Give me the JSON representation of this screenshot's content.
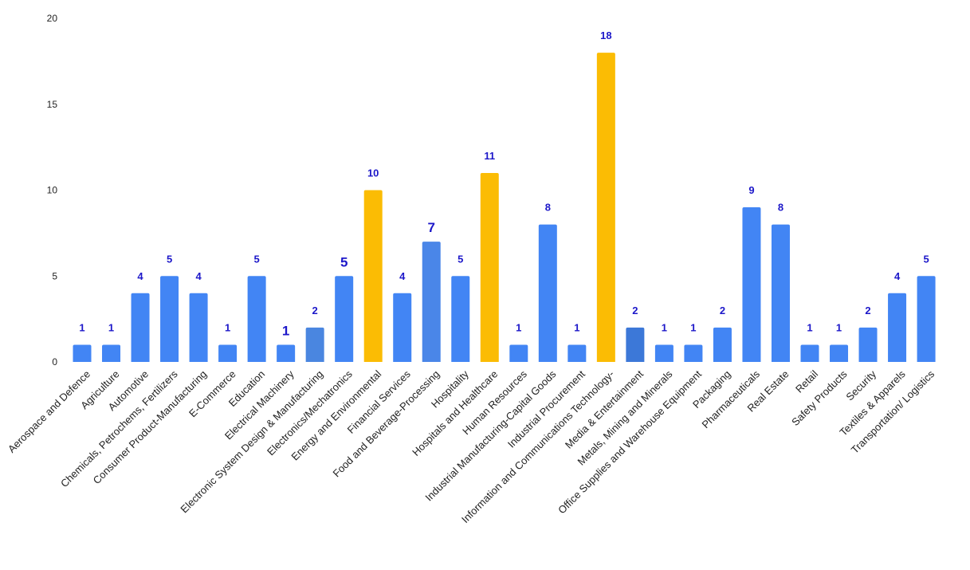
{
  "chart_data": {
    "type": "bar",
    "title": "",
    "xlabel": "",
    "ylabel": "",
    "ylim": [
      0,
      20
    ],
    "yticks": [
      0,
      5,
      10,
      15,
      20
    ],
    "grid": false,
    "legend": "none",
    "categories": [
      "Aerospace and Defence",
      "Agriculture",
      "Automotive",
      "Chemicals, Petrochems, Fertilizers",
      "Consumer Product-Manufacturing",
      "E-Commerce",
      "Education",
      "Electrical Machinery",
      "Electronic System Design & Manufacturing",
      "Electronics/Mechatronics",
      "Energy and Environmental",
      "Financial Services",
      "Food and Beverage-Processing",
      "Hospitality",
      "Hospitals and Healthcare",
      "Human Resources",
      "Industrial Manufacturing-Capital Goods",
      "Industrial Procurement",
      "Information and Communications Technology-",
      "Media & Entertainment",
      "Metals, Mining and Minerals",
      "Office Supplies and Warehouse Equipment",
      "Packaging",
      "Pharmaceuticals",
      "Real Estate",
      "Retail",
      "Safety Products",
      "Security",
      "Textiles & Apparels",
      "Transportation/ Logistics"
    ],
    "values": [
      1,
      1,
      4,
      5,
      4,
      1,
      5,
      1,
      2,
      5,
      10,
      4,
      7,
      5,
      11,
      1,
      8,
      1,
      18,
      2,
      1,
      1,
      2,
      9,
      8,
      1,
      1,
      2,
      4,
      5
    ],
    "bar_colors": [
      "#4285f4",
      "#4285f4",
      "#4285f4",
      "#4285f4",
      "#4285f4",
      "#4285f4",
      "#4285f4",
      "#4285f4",
      "#4a86e0",
      "#4285f4",
      "#fbbc04",
      "#4285f4",
      "#4a86e8",
      "#4285f4",
      "#fbbc04",
      "#4285f4",
      "#4285f4",
      "#4285f4",
      "#fbbc04",
      "#3c78d8",
      "#4285f4",
      "#4285f4",
      "#4285f4",
      "#4285f4",
      "#4285f4",
      "#4285f4",
      "#4285f4",
      "#4285f4",
      "#4285f4",
      "#4285f4"
    ],
    "emphasized_labels": [
      7,
      9,
      12
    ],
    "label_color": "#1c17c9"
  }
}
